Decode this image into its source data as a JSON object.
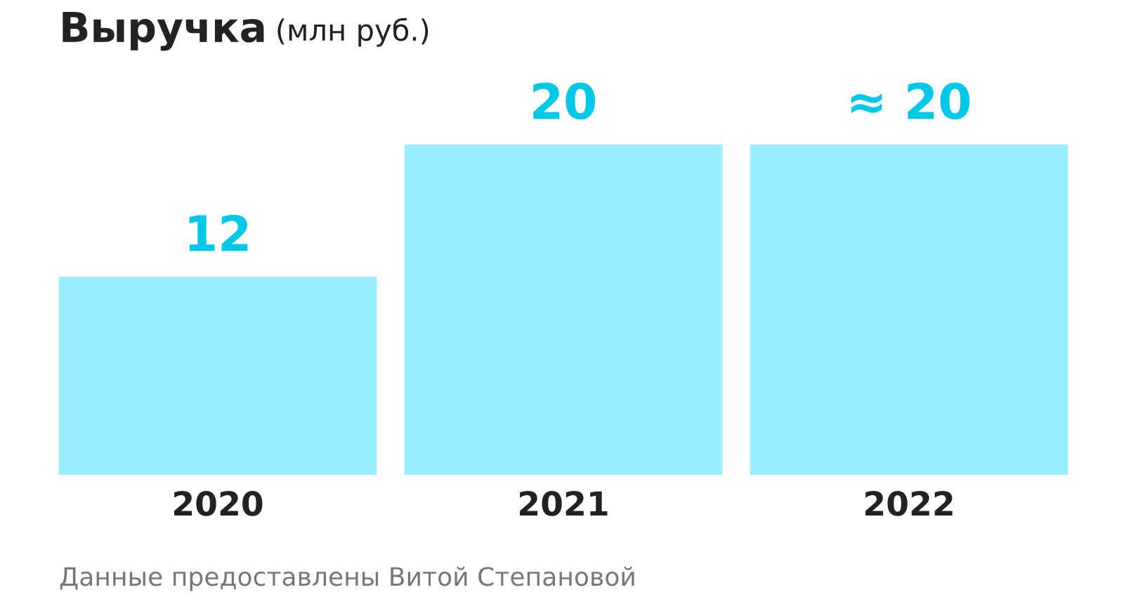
{
  "chart_data": {
    "type": "bar",
    "title": "Выручка",
    "subtitle": "(млн руб.)",
    "categories": [
      "2020",
      "2021",
      "2022"
    ],
    "values": [
      12,
      20,
      20
    ],
    "value_labels": [
      "12",
      "20",
      "≈ 20"
    ],
    "color": "#99edfd",
    "annotations": [
      "Данные предоставлены Витой Степановой"
    ]
  }
}
